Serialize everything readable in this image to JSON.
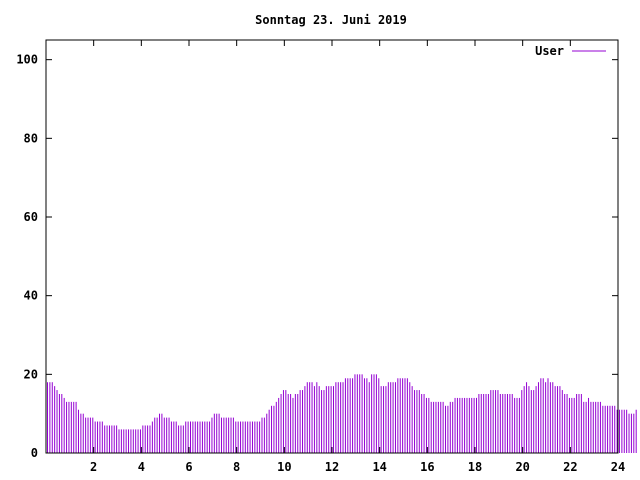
{
  "chart_data": {
    "type": "bar",
    "title": "Sonntag 23. Juni 2019",
    "xlabel": "",
    "ylabel": "",
    "xlim": [
      0,
      24
    ],
    "ylim": [
      0,
      105
    ],
    "x_ticks": [
      2,
      4,
      6,
      8,
      10,
      12,
      14,
      16,
      18,
      20,
      22,
      24
    ],
    "y_ticks": [
      0,
      20,
      40,
      60,
      80,
      100
    ],
    "grid": false,
    "legend_position": "top-right",
    "series": [
      {
        "name": "User",
        "color": "#9400d3",
        "interval_hours": 0.1,
        "values": [
          18,
          18,
          18,
          17,
          16,
          15,
          15,
          14,
          13,
          13,
          13,
          13,
          13,
          11,
          10,
          10,
          9,
          9,
          9,
          9,
          8,
          8,
          8,
          8,
          7,
          7,
          7,
          7,
          7,
          7,
          6,
          6,
          6,
          6,
          6,
          6,
          6,
          6,
          6,
          6,
          7,
          7,
          7,
          7,
          8,
          9,
          9,
          10,
          10,
          9,
          9,
          9,
          8,
          8,
          8,
          7,
          7,
          7,
          8,
          8,
          8,
          8,
          8,
          8,
          8,
          8,
          8,
          8,
          8,
          9,
          10,
          10,
          10,
          9,
          9,
          9,
          9,
          9,
          9,
          8,
          8,
          8,
          8,
          8,
          8,
          8,
          8,
          8,
          8,
          8,
          9,
          9,
          10,
          11,
          12,
          12,
          13,
          14,
          15,
          16,
          16,
          15,
          15,
          14,
          15,
          15,
          16,
          16,
          17,
          18,
          18,
          18,
          17,
          18,
          17,
          16,
          16,
          17,
          17,
          17,
          17,
          18,
          18,
          18,
          18,
          19,
          19,
          19,
          19,
          20,
          20,
          20,
          20,
          19,
          19,
          18,
          20,
          20,
          20,
          19,
          17,
          17,
          17,
          18,
          18,
          18,
          18,
          19,
          19,
          19,
          19,
          19,
          18,
          17,
          16,
          16,
          16,
          15,
          15,
          14,
          14,
          13,
          13,
          13,
          13,
          13,
          13,
          12,
          12,
          13,
          13,
          14,
          14,
          14,
          14,
          14,
          14,
          14,
          14,
          14,
          14,
          15,
          15,
          15,
          15,
          15,
          16,
          16,
          16,
          16,
          15,
          15,
          15,
          15,
          15,
          15,
          14,
          14,
          14,
          16,
          17,
          18,
          17,
          16,
          16,
          17,
          18,
          19,
          19,
          18,
          19,
          18,
          18,
          17,
          17,
          17,
          16,
          15,
          15,
          14,
          14,
          14,
          15,
          15,
          15,
          13,
          13,
          14,
          13,
          13,
          13,
          13,
          13,
          12,
          12,
          12,
          12,
          12,
          12,
          11,
          11,
          11,
          11,
          11,
          10,
          10,
          10,
          11
        ]
      }
    ]
  }
}
